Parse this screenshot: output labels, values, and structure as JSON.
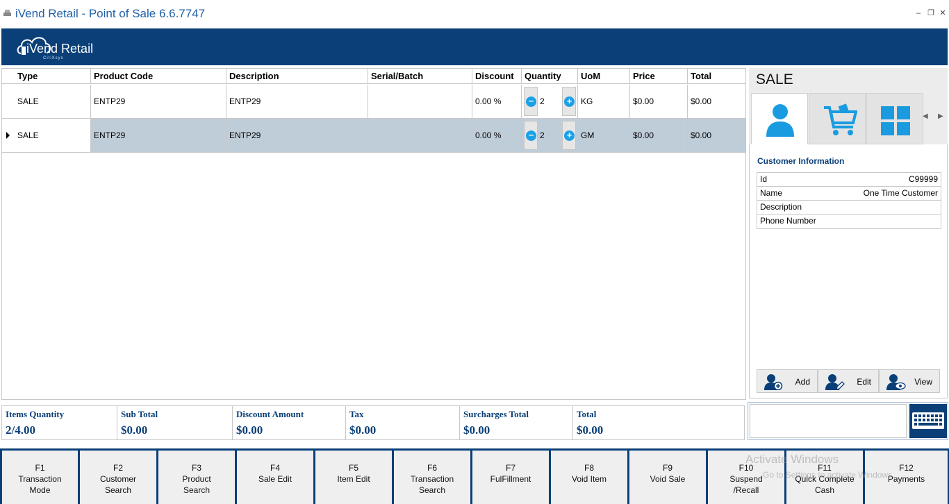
{
  "window": {
    "title": "iVend Retail - Point of Sale 6.6.7747"
  },
  "brand": {
    "name": "iVend Retail",
    "tagline": "CitiXsys"
  },
  "grid": {
    "columns": [
      "Type",
      "Product Code",
      "Description",
      "Serial/Batch",
      "Discount",
      "Quantity",
      "UoM",
      "Price",
      "Total"
    ],
    "rows": [
      {
        "type": "SALE",
        "product_code": "ENTP29",
        "description": "ENTP29",
        "serial_batch": "",
        "discount": "0.00 %",
        "quantity": "2",
        "uom": "KG",
        "price": "$0.00",
        "total": "$0.00",
        "selected": false
      },
      {
        "type": "SALE",
        "product_code": "ENTP29",
        "description": "ENTP29",
        "serial_batch": "",
        "discount": "0.00 %",
        "quantity": "2",
        "uom": "GM",
        "price": "$0.00",
        "total": "$0.00",
        "selected": true
      }
    ]
  },
  "side": {
    "title": "SALE",
    "tabs": [
      {
        "icon": "customer-icon",
        "active": true
      },
      {
        "icon": "cart-icon",
        "active": false
      },
      {
        "icon": "grid-icon",
        "active": false
      }
    ],
    "customer": {
      "title": "Customer Information",
      "fields": [
        {
          "label": "Id",
          "value": "C99999"
        },
        {
          "label": "Name",
          "value": "One Time Customer"
        },
        {
          "label": "Description",
          "value": ""
        },
        {
          "label": "Phone Number",
          "value": ""
        }
      ],
      "actions": {
        "add": "Add",
        "edit": "Edit",
        "view": "View"
      }
    }
  },
  "totals": {
    "items_quantity": {
      "label": "Items Quantity",
      "value": "2/4.00"
    },
    "sub_total": {
      "label": "Sub Total",
      "value": "$0.00"
    },
    "discount_amount": {
      "label": "Discount Amount",
      "value": "$0.00"
    },
    "tax": {
      "label": "Tax",
      "value": "$0.00"
    },
    "surcharges_total": {
      "label": "Surcharges Total",
      "value": "$0.00"
    },
    "total": {
      "label": "Total",
      "value": "$0.00"
    }
  },
  "entry": {
    "value": ""
  },
  "fkeys": [
    {
      "key": "F1",
      "l1": "Transaction",
      "l2": "Mode"
    },
    {
      "key": "F2",
      "l1": "Customer",
      "l2": "Search"
    },
    {
      "key": "F3",
      "l1": "Product",
      "l2": "Search"
    },
    {
      "key": "F4",
      "l1": "Sale Edit",
      "l2": ""
    },
    {
      "key": "F5",
      "l1": "Item Edit",
      "l2": ""
    },
    {
      "key": "F6",
      "l1": "Transaction",
      "l2": "Search"
    },
    {
      "key": "F7",
      "l1": "FulFillment",
      "l2": ""
    },
    {
      "key": "F8",
      "l1": "Void Item",
      "l2": ""
    },
    {
      "key": "F9",
      "l1": "Void Sale",
      "l2": ""
    },
    {
      "key": "F10",
      "l1": "Suspend",
      "l2": "/Recall"
    },
    {
      "key": "F11",
      "l1": "Quick Complete",
      "l2": "Cash"
    },
    {
      "key": "F12",
      "l1": "Payments",
      "l2": ""
    }
  ],
  "watermark": {
    "line1": "Activate Windows",
    "line2": "Go to Settings to activate Windows."
  }
}
